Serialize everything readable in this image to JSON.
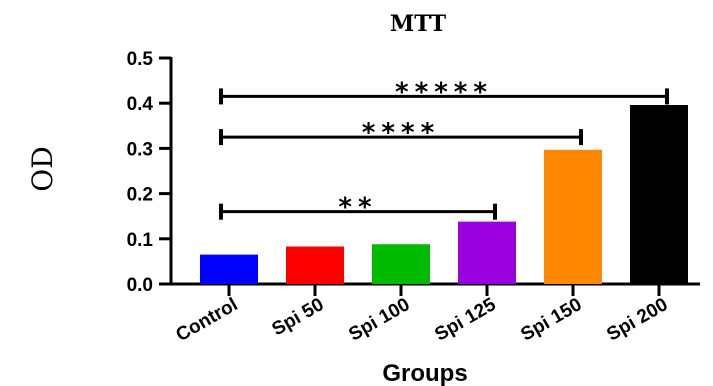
{
  "chart_data": {
    "type": "bar",
    "title": "MTT",
    "xlabel": "Groups",
    "ylabel": "OD",
    "ylim": [
      0,
      0.5
    ],
    "yticks": [
      "0.0",
      "0.1",
      "0.2",
      "0.3",
      "0.4",
      "0.5"
    ],
    "categories": [
      "Control",
      "Spi 50",
      "Spi 100",
      "Spi 125",
      "Spi 150",
      "Spi 200"
    ],
    "values": [
      0.065,
      0.083,
      0.088,
      0.138,
      0.297,
      0.396
    ],
    "colors": [
      "#0000ff",
      "#ff0000",
      "#00bb00",
      "#9900dd",
      "#ff8800",
      "#000000"
    ],
    "significance": [
      {
        "from": 0,
        "to": 3,
        "level": 0.16,
        "label": "**"
      },
      {
        "from": 0,
        "to": 4,
        "level": 0.325,
        "label": "****"
      },
      {
        "from": 0,
        "to": 5,
        "level": 0.415,
        "label": "*****"
      }
    ]
  }
}
